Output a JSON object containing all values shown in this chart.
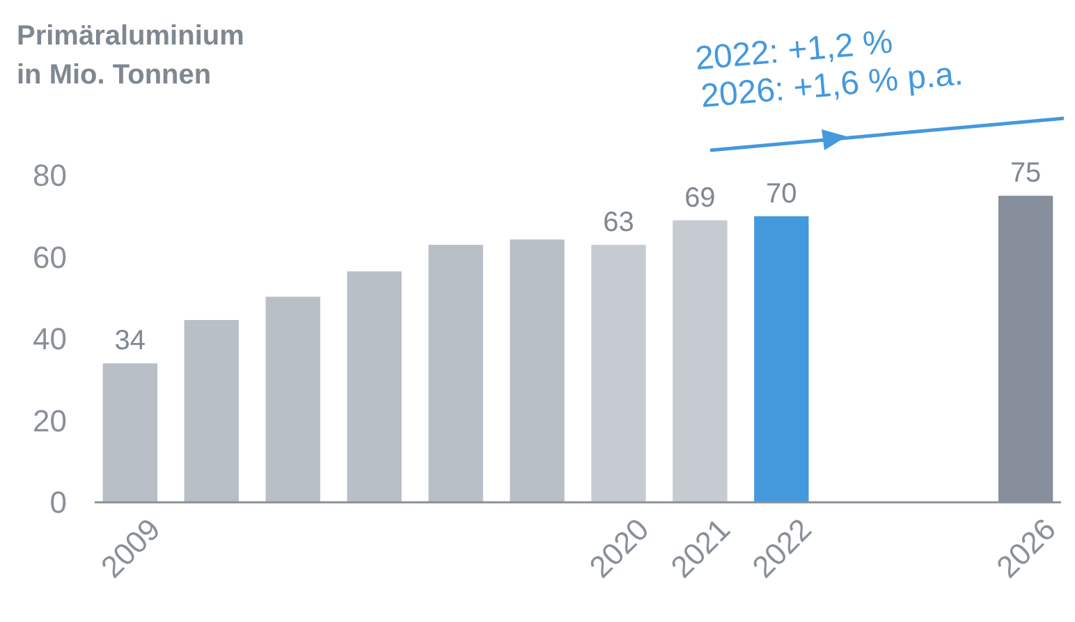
{
  "chart_data": {
    "type": "bar",
    "title": "Primäraluminium\nin Mio. Tonnen",
    "categories": [
      "2009",
      null,
      null,
      null,
      null,
      null,
      "2020",
      "2021",
      "2022",
      null,
      null,
      "2026"
    ],
    "values": [
      34,
      44.6,
      50.3,
      56.5,
      63,
      64.3,
      63,
      69,
      70,
      null,
      null,
      75
    ],
    "colors": [
      "#b9bfc7",
      "#b9bfc7",
      "#b9bfc7",
      "#b9bfc7",
      "#b9bfc7",
      "#b9bfc7",
      "#c6cad1",
      "#c6cad1",
      "#4499dd",
      null,
      null,
      "#868f9b"
    ],
    "value_labels": [
      "34",
      null,
      null,
      null,
      null,
      null,
      "63",
      "69",
      "70",
      null,
      null,
      "75"
    ],
    "ylim": [
      0,
      80
    ],
    "yticks": [
      0,
      20,
      40,
      60,
      80
    ],
    "grid": false,
    "annotations": [
      "2022: +1,2 %",
      "2026: +1,6 % p.a."
    ]
  }
}
